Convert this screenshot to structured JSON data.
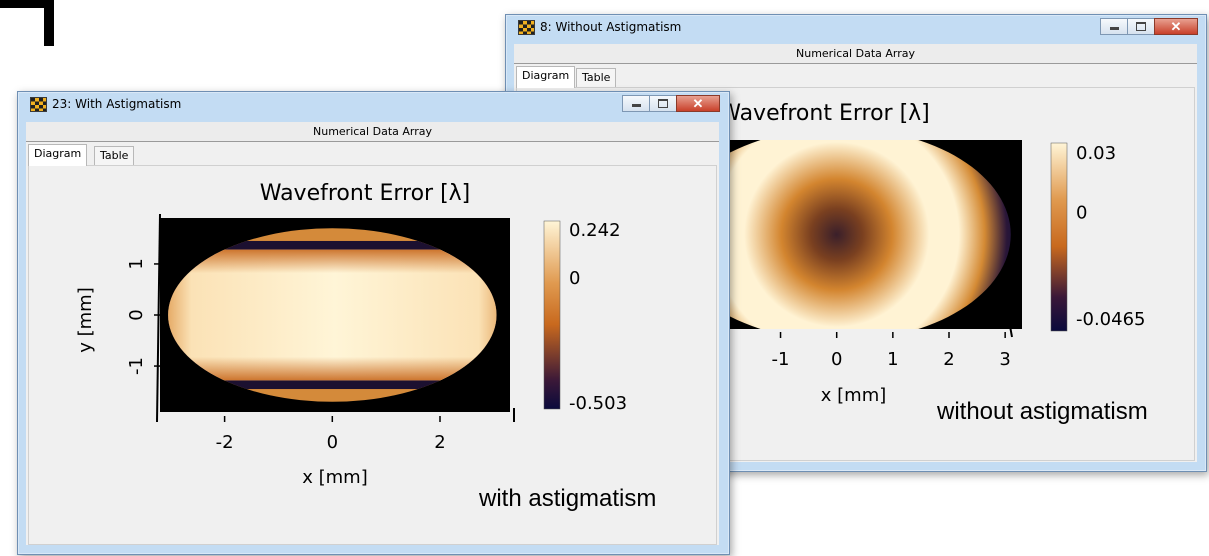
{
  "windows": {
    "back": {
      "title": "8: Without Astigmatism",
      "subtitle": "Numerical Data Array",
      "tabs": [
        "Diagram",
        "Table"
      ],
      "active_tab": "Diagram",
      "caption": "without astigmatism"
    },
    "front": {
      "title": "23: With Astigmatism",
      "subtitle": "Numerical Data Array",
      "tabs": [
        "Diagram",
        "Table"
      ],
      "active_tab": "Diagram",
      "caption": "with astigmatism"
    }
  },
  "icons": {
    "app": "checkerboard-app-icon",
    "minimize": "minimize-icon",
    "maximize": "maximize-icon",
    "close": "close-icon"
  },
  "colors": {
    "colormap": [
      "#0a0a3c",
      "#c8691e",
      "#fff5d7"
    ],
    "window_frame": "#c3dcf3",
    "close_button": "#c8402a"
  },
  "chart_data": [
    {
      "type": "heatmap",
      "window": "front",
      "title": "Wavefront Error [λ]",
      "xlabel": "x [mm]",
      "ylabel": "y [mm]",
      "xlim": [
        -3.2,
        3.3
      ],
      "ylim": [
        -1.9,
        1.9
      ],
      "x_ticks": [
        "-2",
        "0",
        "2"
      ],
      "x_tick_values": [
        -2,
        0,
        2
      ],
      "y_ticks": [
        "1",
        "0",
        "-1"
      ],
      "y_tick_values": [
        1,
        0,
        -1
      ],
      "colorbar": {
        "max_label": "0.242",
        "zero_label": "0",
        "min_label": "-0.503",
        "max": 0.242,
        "min": -0.503
      },
      "grid": false
    },
    {
      "type": "heatmap",
      "window": "back",
      "title": "Wavefront Error [λ]",
      "xlabel": "x [mm]",
      "ylabel": "",
      "xlim": [
        -3.2,
        3.3
      ],
      "x_ticks": [
        "-1",
        "0",
        "1",
        "2",
        "3"
      ],
      "x_tick_values": [
        -1,
        0,
        1,
        2,
        3
      ],
      "colorbar": {
        "max_label": "0.03",
        "zero_label": "0",
        "min_label": "-0.0465",
        "max": 0.03,
        "min": -0.0465
      },
      "grid": false
    }
  ]
}
